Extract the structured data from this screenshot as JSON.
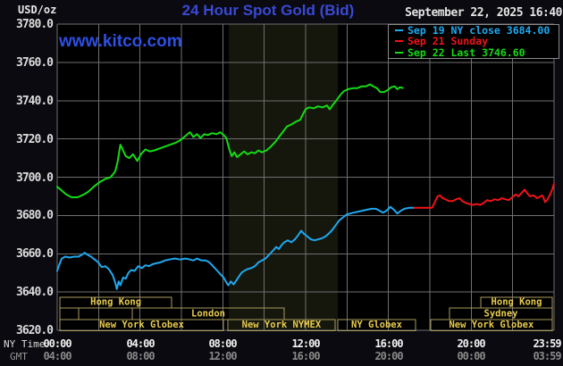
{
  "header": {
    "unit": "USD/oz",
    "title": "24 Hour Spot Gold (Bid)",
    "datetime": "September 22, 2025 16:40",
    "watermark": "www.kitco.com"
  },
  "axis": {
    "ny_label": "NY Time",
    "gmt_label": "GMT"
  },
  "chart_data": {
    "type": "line",
    "title": "24 Hour Spot Gold (Bid)",
    "ylabel": "USD/oz",
    "ylim": [
      3620,
      3780
    ],
    "grid": true,
    "y_tick_labels": [
      "3780.0",
      "3760.0",
      "3740.0",
      "3720.0",
      "3700.0",
      "3680.0",
      "3660.0",
      "3640.0",
      "3620.0"
    ],
    "x_tick_hours": [
      0,
      4,
      8,
      12,
      16,
      20,
      23.983
    ],
    "x_ticks_ny": [
      "00:00",
      "04:00",
      "08:00",
      "12:00",
      "16:00",
      "20:00",
      "23:59"
    ],
    "x_ticks_gmt": [
      "04:00",
      "08:00",
      "12:00",
      "16:00",
      "20:00",
      "00:00",
      "03:59"
    ],
    "highlight_band_hours": {
      "start": 8.29,
      "end": 13.55
    },
    "sessions": [
      {
        "row": 0,
        "label": "Hong Kong",
        "start": 0.13,
        "end": 5.53
      },
      {
        "row": 0,
        "label": "Hong Kong",
        "start": 20.46,
        "end": 23.91
      },
      {
        "row": 1,
        "label": "",
        "start": 0.13,
        "end": 1.04
      },
      {
        "row": 1,
        "label": "",
        "start": 1.04,
        "end": 3.63
      },
      {
        "row": 1,
        "label": "London",
        "start": 3.63,
        "end": 10.96
      },
      {
        "row": 1,
        "label": "Sydney",
        "start": 18.95,
        "end": 23.91
      },
      {
        "row": 2,
        "label": "New York Globex",
        "start": 0.13,
        "end": 8.03
      },
      {
        "row": 2,
        "label": "New York NYMEX",
        "start": 8.24,
        "end": 13.42
      },
      {
        "row": 2,
        "label": "NY Globex",
        "start": 13.55,
        "end": 17.31
      },
      {
        "row": 2,
        "label": "New York Globex",
        "start": 18.04,
        "end": 23.91
      }
    ],
    "legend": [
      {
        "label": "Sep 19 NY close 3684.00",
        "color": "#1ea9f0"
      },
      {
        "label": "Sep 21 Sunday",
        "color": "#f01419"
      },
      {
        "label": "Sep 22 Last 3746.60",
        "color": "#14dc14"
      }
    ],
    "series": [
      {
        "name": "Sep 19 NY close",
        "color": "#1ea9f0",
        "close": 3684.0,
        "points": [
          [
            0,
            3651
          ],
          [
            0.09,
            3654
          ],
          [
            0.22,
            3657.5
          ],
          [
            0.39,
            3658.5
          ],
          [
            0.6,
            3658
          ],
          [
            0.82,
            3658.5
          ],
          [
            1.03,
            3658.5
          ],
          [
            1.2,
            3659.5
          ],
          [
            1.33,
            3660.5
          ],
          [
            1.46,
            3659.5
          ],
          [
            1.63,
            3658.5
          ],
          [
            1.81,
            3657
          ],
          [
            1.98,
            3655.5
          ],
          [
            2.15,
            3653
          ],
          [
            2.32,
            3653.5
          ],
          [
            2.49,
            3652
          ],
          [
            2.67,
            3649
          ],
          [
            2.8,
            3645
          ],
          [
            2.88,
            3641.5
          ],
          [
            2.97,
            3645.5
          ],
          [
            3.05,
            3643.5
          ],
          [
            3.18,
            3647.5
          ],
          [
            3.31,
            3647
          ],
          [
            3.44,
            3650
          ],
          [
            3.57,
            3651.5
          ],
          [
            3.74,
            3651
          ],
          [
            3.91,
            3653.5
          ],
          [
            4.09,
            3652.5
          ],
          [
            4.26,
            3654
          ],
          [
            4.43,
            3653.5
          ],
          [
            4.6,
            3654.5
          ],
          [
            4.77,
            3655
          ],
          [
            4.99,
            3655.5
          ],
          [
            5.2,
            3656.5
          ],
          [
            5.42,
            3657
          ],
          [
            5.68,
            3657.5
          ],
          [
            5.94,
            3657
          ],
          [
            6.19,
            3657.5
          ],
          [
            6.41,
            3657
          ],
          [
            6.58,
            3656.5
          ],
          [
            6.75,
            3657.5
          ],
          [
            6.97,
            3656.5
          ],
          [
            7.18,
            3656.5
          ],
          [
            7.35,
            3655.5
          ],
          [
            7.53,
            3653.5
          ],
          [
            7.7,
            3651.5
          ],
          [
            7.87,
            3649.5
          ],
          [
            8.04,
            3647.5
          ],
          [
            8.17,
            3645
          ],
          [
            8.26,
            3643.5
          ],
          [
            8.39,
            3645.5
          ],
          [
            8.52,
            3644
          ],
          [
            8.65,
            3646
          ],
          [
            8.77,
            3648
          ],
          [
            8.9,
            3650
          ],
          [
            9.03,
            3651
          ],
          [
            9.2,
            3652
          ],
          [
            9.38,
            3652.5
          ],
          [
            9.55,
            3653.5
          ],
          [
            9.72,
            3655.5
          ],
          [
            9.89,
            3656.5
          ],
          [
            10.06,
            3657.5
          ],
          [
            10.24,
            3659.5
          ],
          [
            10.41,
            3661.5
          ],
          [
            10.58,
            3663.5
          ],
          [
            10.71,
            3662.5
          ],
          [
            10.84,
            3664.5
          ],
          [
            10.97,
            3666
          ],
          [
            11.14,
            3667
          ],
          [
            11.31,
            3666
          ],
          [
            11.48,
            3667.5
          ],
          [
            11.66,
            3670
          ],
          [
            11.79,
            3672
          ],
          [
            11.91,
            3670.5
          ],
          [
            12.09,
            3669
          ],
          [
            12.26,
            3667.5
          ],
          [
            12.43,
            3667
          ],
          [
            12.6,
            3667.5
          ],
          [
            12.77,
            3668
          ],
          [
            12.95,
            3669
          ],
          [
            13.12,
            3670.5
          ],
          [
            13.29,
            3672.5
          ],
          [
            13.46,
            3675
          ],
          [
            13.63,
            3677.5
          ],
          [
            13.81,
            3679
          ],
          [
            13.98,
            3680.5
          ],
          [
            14.15,
            3681
          ],
          [
            14.32,
            3681.5
          ],
          [
            14.54,
            3682
          ],
          [
            14.75,
            3682.5
          ],
          [
            14.97,
            3683
          ],
          [
            15.18,
            3683.5
          ],
          [
            15.4,
            3683.5
          ],
          [
            15.57,
            3682.5
          ],
          [
            15.74,
            3681.5
          ],
          [
            15.91,
            3682.5
          ],
          [
            16.09,
            3684.5
          ],
          [
            16.26,
            3683
          ],
          [
            16.43,
            3681
          ],
          [
            16.6,
            3682.5
          ],
          [
            16.77,
            3683.5
          ],
          [
            16.99,
            3684
          ],
          [
            17.25,
            3684
          ]
        ]
      },
      {
        "name": "Sep 21 Sunday",
        "color": "#f01419",
        "points": [
          [
            17.25,
            3684
          ],
          [
            18.11,
            3684
          ],
          [
            18.24,
            3687
          ],
          [
            18.37,
            3690
          ],
          [
            18.49,
            3690.5
          ],
          [
            18.62,
            3689
          ],
          [
            18.75,
            3688.5
          ],
          [
            18.92,
            3687.5
          ],
          [
            19.1,
            3687.5
          ],
          [
            19.27,
            3688.5
          ],
          [
            19.44,
            3689
          ],
          [
            19.57,
            3687.5
          ],
          [
            19.74,
            3686.5
          ],
          [
            19.91,
            3686
          ],
          [
            20.09,
            3685.5
          ],
          [
            20.26,
            3686
          ],
          [
            20.43,
            3685.5
          ],
          [
            20.6,
            3686.5
          ],
          [
            20.77,
            3688
          ],
          [
            20.95,
            3687.5
          ],
          [
            21.12,
            3688.5
          ],
          [
            21.29,
            3688
          ],
          [
            21.46,
            3689
          ],
          [
            21.63,
            3688.5
          ],
          [
            21.81,
            3688
          ],
          [
            21.98,
            3689.5
          ],
          [
            22.15,
            3691
          ],
          [
            22.28,
            3690
          ],
          [
            22.45,
            3692
          ],
          [
            22.58,
            3693.5
          ],
          [
            22.71,
            3691.5
          ],
          [
            22.84,
            3690
          ],
          [
            23.01,
            3690.5
          ],
          [
            23.18,
            3689
          ],
          [
            23.35,
            3690
          ],
          [
            23.44,
            3690.5
          ],
          [
            23.57,
            3687
          ],
          [
            23.66,
            3688
          ],
          [
            23.74,
            3689.5
          ],
          [
            23.83,
            3691.5
          ],
          [
            23.91,
            3693.5
          ],
          [
            23.99,
            3696.5
          ]
        ]
      },
      {
        "name": "Sep 22 Last",
        "color": "#14dc14",
        "last": 3746.6,
        "points": [
          [
            0,
            3695
          ],
          [
            0.22,
            3693
          ],
          [
            0.43,
            3691
          ],
          [
            0.69,
            3689.5
          ],
          [
            0.99,
            3689.5
          ],
          [
            1.29,
            3691
          ],
          [
            1.51,
            3692.5
          ],
          [
            1.76,
            3695
          ],
          [
            2.06,
            3697.5
          ],
          [
            2.32,
            3699
          ],
          [
            2.58,
            3700
          ],
          [
            2.8,
            3703
          ],
          [
            2.92,
            3708
          ],
          [
            3.05,
            3717
          ],
          [
            3.18,
            3714
          ],
          [
            3.31,
            3711
          ],
          [
            3.48,
            3710
          ],
          [
            3.66,
            3712
          ],
          [
            3.87,
            3708.5
          ],
          [
            4.04,
            3712
          ],
          [
            4.26,
            3714.5
          ],
          [
            4.47,
            3713.5
          ],
          [
            4.69,
            3714
          ],
          [
            4.95,
            3715
          ],
          [
            5.2,
            3716
          ],
          [
            5.46,
            3717
          ],
          [
            5.72,
            3718
          ],
          [
            5.98,
            3719.5
          ],
          [
            6.19,
            3721.5
          ],
          [
            6.41,
            3723.5
          ],
          [
            6.58,
            3721
          ],
          [
            6.75,
            3722.5
          ],
          [
            6.92,
            3720.5
          ],
          [
            7.1,
            3722.5
          ],
          [
            7.27,
            3722
          ],
          [
            7.48,
            3723
          ],
          [
            7.7,
            3722.5
          ],
          [
            7.87,
            3723.5
          ],
          [
            8.04,
            3722
          ],
          [
            8.17,
            3720.5
          ],
          [
            8.3,
            3715
          ],
          [
            8.43,
            3711
          ],
          [
            8.56,
            3713
          ],
          [
            8.69,
            3710.5
          ],
          [
            8.86,
            3712
          ],
          [
            9.03,
            3713.5
          ],
          [
            9.2,
            3712
          ],
          [
            9.38,
            3713
          ],
          [
            9.55,
            3712.5
          ],
          [
            9.72,
            3714
          ],
          [
            9.89,
            3713
          ],
          [
            10.11,
            3714
          ],
          [
            10.32,
            3716
          ],
          [
            10.54,
            3718.5
          ],
          [
            10.75,
            3721.5
          ],
          [
            10.92,
            3724
          ],
          [
            11.1,
            3726.5
          ],
          [
            11.31,
            3727.5
          ],
          [
            11.53,
            3729
          ],
          [
            11.74,
            3730
          ],
          [
            11.87,
            3733
          ],
          [
            12,
            3735.5
          ],
          [
            12.17,
            3736.5
          ],
          [
            12.39,
            3736
          ],
          [
            12.6,
            3737
          ],
          [
            12.82,
            3736.5
          ],
          [
            13.03,
            3737.5
          ],
          [
            13.16,
            3735.5
          ],
          [
            13.33,
            3738
          ],
          [
            13.51,
            3740.5
          ],
          [
            13.68,
            3743
          ],
          [
            13.85,
            3745
          ],
          [
            14.06,
            3746
          ],
          [
            14.28,
            3746.5
          ],
          [
            14.49,
            3746.5
          ],
          [
            14.71,
            3747.5
          ],
          [
            14.92,
            3747.5
          ],
          [
            15.1,
            3748.5
          ],
          [
            15.27,
            3747.5
          ],
          [
            15.44,
            3746.5
          ],
          [
            15.61,
            3744.5
          ],
          [
            15.78,
            3744.5
          ],
          [
            15.96,
            3745.5
          ],
          [
            16.13,
            3747
          ],
          [
            16.3,
            3747.5
          ],
          [
            16.43,
            3746
          ],
          [
            16.56,
            3747
          ],
          [
            16.69,
            3746.6
          ]
        ]
      }
    ],
    "colors": {
      "plot_bg": "#000000",
      "outer_bg": "#0a0a10",
      "grid": "#6f6f6f",
      "band": "#15170d",
      "session_border": "#a89a5e",
      "session_text": "#e8cc4e",
      "title_blue": "#3a49d4",
      "watermark_blue": "#2d4fe4"
    }
  }
}
